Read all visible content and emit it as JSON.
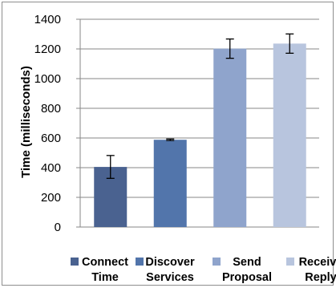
{
  "chart_data": {
    "type": "bar",
    "categories": [
      "Connect Time",
      "Discover Services",
      "Send Proposal",
      "Receive Reply"
    ],
    "legend_lines": [
      [
        "Connect",
        "Time"
      ],
      [
        "Discover",
        "Services"
      ],
      [
        "Send",
        "Proposal"
      ],
      [
        "Receive",
        "Reply"
      ]
    ],
    "values": [
      405,
      588,
      1202,
      1236
    ],
    "errors": [
      77,
      5,
      65,
      65
    ],
    "colors": [
      "#4a6290",
      "#5275ab",
      "#8fa4cc",
      "#b8c5de"
    ],
    "ylabel": "Time (milliseconds)",
    "xlabel": "",
    "ylim": [
      0,
      1400
    ],
    "yticks": [
      0,
      200,
      400,
      600,
      800,
      1000,
      1200,
      1400
    ],
    "grid": true,
    "legend_position": "bottom"
  }
}
